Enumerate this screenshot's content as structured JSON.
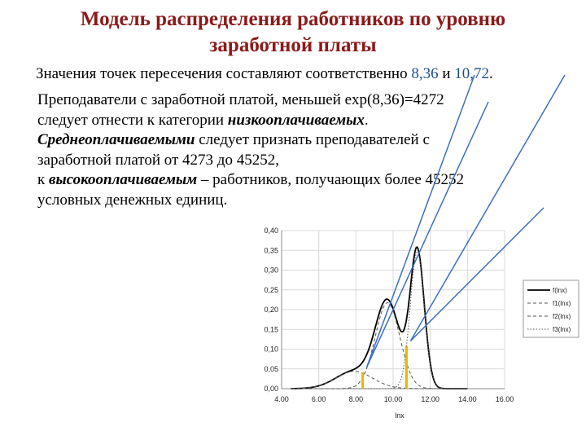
{
  "slide": {
    "title_line1": "Модель распределения работников по уровню",
    "title_line2": "заработной платы",
    "intro": {
      "text": "Значения точек пересечения составляют соответственно",
      "value1": "8,36",
      "conj": "и",
      "value2": "10,72",
      "end": "."
    },
    "para1": "Преподаватели с заработной платой, меньшей exp(8,36)=4272",
    "para2_a": "следует отнести к категории",
    "para2_em": "низкооплачиваемых",
    "para2_end": ".",
    "para3_em": "Среднеоплачиваемыми",
    "para3_rest": "следует признать преподавателей с",
    "para4": "заработной платой от 4273 до 45252,",
    "para5_a": "к",
    "para5_em": "высокооплачиваемым",
    "para5_rest": "– работников, получающих более 45252",
    "para6": "условных денежных единиц."
  },
  "chart_data": {
    "type": "line",
    "xlabel": "lnx",
    "ylabel": "",
    "xlim": [
      4,
      16
    ],
    "ylim": [
      0,
      0.4
    ],
    "x_ticks": [
      "4.00",
      "6.00",
      "8.00",
      "10.00",
      "12.00",
      "14.00",
      "16.00"
    ],
    "y_ticks": [
      "0,00",
      "0,05",
      "0,10",
      "0,15",
      "0,20",
      "0,25",
      "0,30",
      "0,35",
      "0,40"
    ],
    "grid": true,
    "legend_position": "right",
    "series": [
      {
        "name": "f(lnx)",
        "style": "solid",
        "mix": true
      },
      {
        "name": "f1(lnx)",
        "style": "dashed",
        "mu": 7.9,
        "sigma": 1.0,
        "weight": 0.11
      },
      {
        "name": "f2(lnx)",
        "style": "dashed",
        "mu": 9.7,
        "sigma": 0.66,
        "weight": 0.36
      },
      {
        "name": "f3(lnx)",
        "style": "dotted",
        "mu": 11.3,
        "sigma": 0.38,
        "weight": 0.33
      }
    ],
    "intersections": [
      {
        "x": 8.36,
        "label": "8,36"
      },
      {
        "x": 10.72,
        "label": "10,72"
      }
    ],
    "colors": {
      "markers": "#e6b800",
      "arrows": "#3b6fc4",
      "title": "#8b1a1a"
    }
  }
}
